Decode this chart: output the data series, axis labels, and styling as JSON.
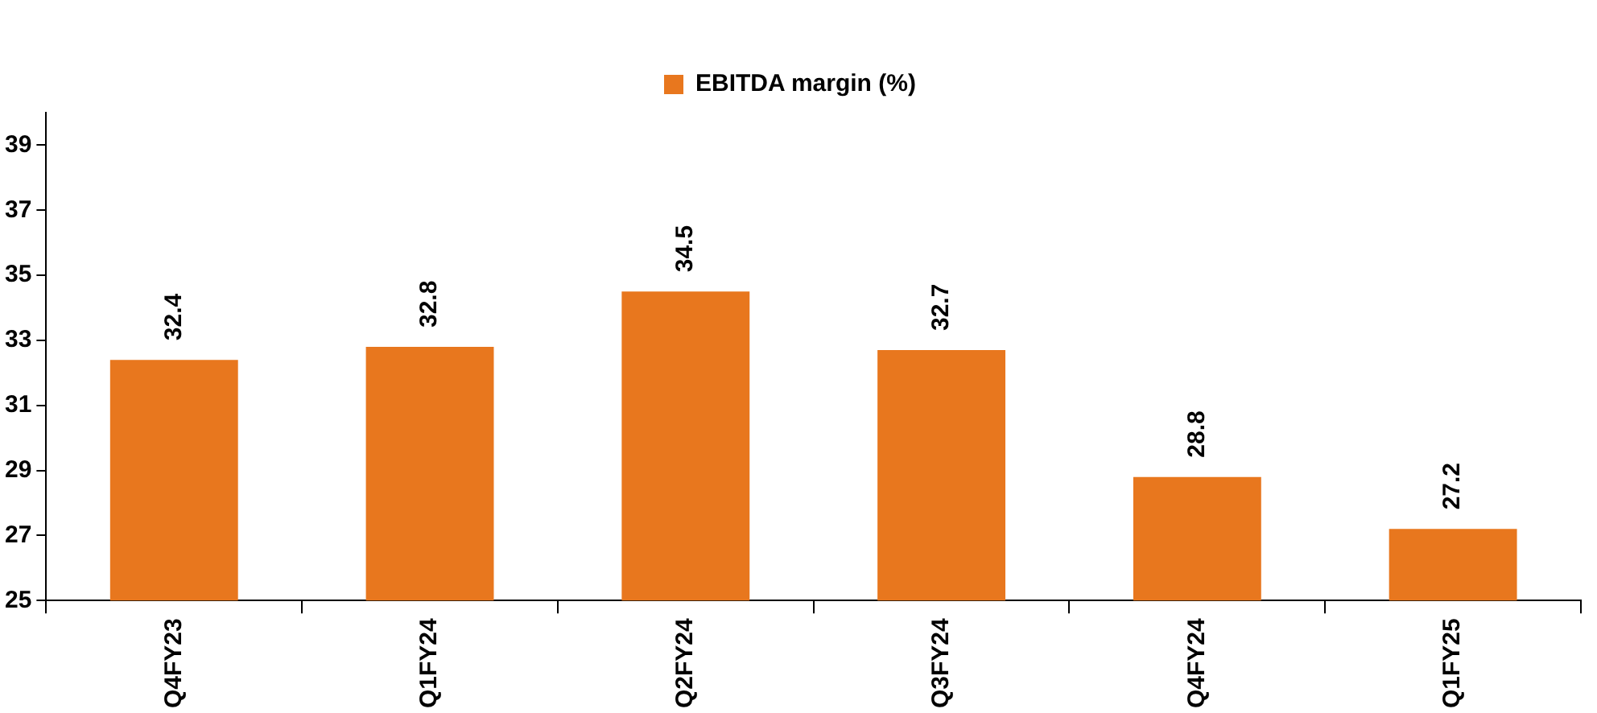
{
  "chart_data": {
    "type": "bar",
    "categories": [
      "Q4FY23",
      "Q1FY24",
      "Q2FY24",
      "Q3FY24",
      "Q4FY24",
      "Q1FY25"
    ],
    "series": [
      {
        "name": "EBITDA margin (%)",
        "color": "#e8771e",
        "values": [
          32.4,
          32.8,
          34.5,
          32.7,
          28.8,
          27.2
        ]
      }
    ],
    "ylim": [
      25,
      40
    ],
    "yticks": [
      25,
      27,
      29,
      31,
      33,
      35,
      37,
      39
    ],
    "data_labels": true,
    "legend": "top",
    "grid": false
  }
}
